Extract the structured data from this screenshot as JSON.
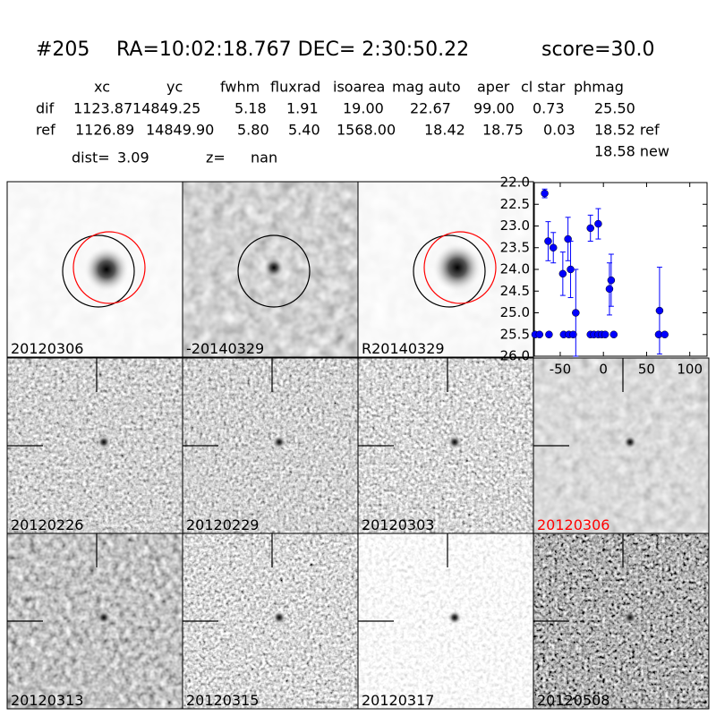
{
  "header": {
    "id": "#205",
    "coords": "RA=10:02:18.767 DEC= 2:30:50.22",
    "score": "score=30.0"
  },
  "table": {
    "columns": [
      "xc",
      "yc",
      "fwhm",
      "fluxrad",
      "isoarea",
      "mag auto",
      "aper",
      "cl star",
      "phmag"
    ],
    "rows": [
      [
        "dif",
        "1123.87",
        "14849.25",
        "5.18",
        "1.91",
        "19.00",
        "22.67",
        "99.00",
        "0.73",
        "25.50"
      ],
      [
        "ref",
        "1126.89",
        "14849.90",
        "5.80",
        "5.40",
        "1568.00",
        "18.42",
        "18.75",
        "0.03",
        "18.52 ref"
      ]
    ],
    "extra": "18.58 new"
  },
  "dist": {
    "label": "dist=",
    "value": "3.09"
  },
  "z": {
    "label": "z=",
    "value": "nan"
  },
  "panels": [
    {
      "label": "20120306"
    },
    {
      "label": "-20140329"
    },
    {
      "label": "R20140329"
    }
  ],
  "stamps": [
    {
      "label": "20120226"
    },
    {
      "label": "20120229"
    },
    {
      "label": "20120303"
    },
    {
      "label": "20120306",
      "label_color": "#ff0000"
    },
    {
      "label": "20120313"
    },
    {
      "label": "20120315"
    },
    {
      "label": "20120317"
    },
    {
      "label": "20120508"
    }
  ],
  "chart_data": {
    "type": "scatter",
    "y_inverted": true,
    "xlim": [
      -80,
      120
    ],
    "xticks": [
      -50,
      0,
      50,
      100
    ],
    "ylim": [
      22.0,
      26.0
    ],
    "yticks": [
      {
        "value": 22.0,
        "label": "22.0"
      },
      {
        "value": 22.5,
        "label": "22.5"
      },
      {
        "value": 23.0,
        "label": "23.0"
      },
      {
        "value": 23.5,
        "label": "23.5"
      },
      {
        "value": 24.0,
        "label": "24.0"
      },
      {
        "value": 24.5,
        "label": "24.5"
      },
      {
        "value": 25.0,
        "label": "25.0"
      },
      {
        "value": 25.5,
        "label": "25.5"
      },
      {
        "value": 26.0,
        "label": "26.0"
      }
    ],
    "series": [
      {
        "color": "#0000ff",
        "x": [
          -68,
          -64,
          -58,
          -47,
          -41,
          -38,
          -32,
          -15,
          -6,
          7,
          9,
          65,
          -79,
          -74,
          -63,
          -46,
          -40,
          -35,
          -15,
          -11,
          -6,
          -2,
          2,
          12,
          64,
          71
        ],
        "values": [
          22.25,
          23.35,
          23.5,
          24.1,
          23.3,
          24.0,
          25.0,
          23.05,
          22.95,
          24.45,
          24.25,
          24.95,
          25.5,
          25.5,
          25.5,
          25.5,
          25.5,
          25.5,
          25.5,
          25.5,
          25.5,
          25.5,
          25.5,
          25.5,
          25.5,
          25.5
        ],
        "errors": [
          0.1,
          0.45,
          0.35,
          0.5,
          0.5,
          0.65,
          1.0,
          0.3,
          0.35,
          0.6,
          0.6,
          1.0,
          null,
          null,
          null,
          null,
          null,
          null,
          null,
          null,
          null,
          null,
          null,
          null,
          null,
          null
        ]
      }
    ]
  }
}
